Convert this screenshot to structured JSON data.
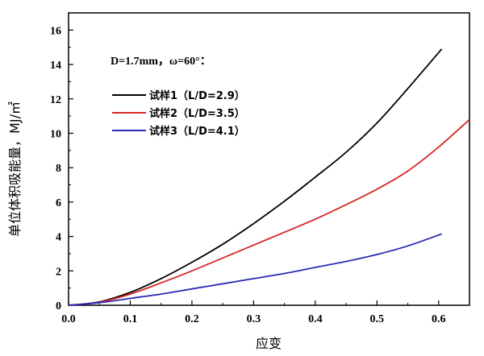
{
  "chart_data": {
    "type": "line",
    "title": "",
    "xlabel": "应变",
    "ylabel": "单位体积吸能量，MJ/㎡",
    "xlim": [
      0.0,
      0.65
    ],
    "ylim": [
      0,
      17
    ],
    "x_ticks": [
      0.0,
      0.1,
      0.2,
      0.3,
      0.4,
      0.5,
      0.6
    ],
    "x_tick_labels": [
      "0.0",
      "0.1",
      "0.2",
      "0.3",
      "0.4",
      "0.5",
      "0.6"
    ],
    "y_ticks": [
      0,
      2,
      4,
      6,
      8,
      10,
      12,
      14,
      16
    ],
    "y_tick_labels": [
      "0",
      "2",
      "4",
      "6",
      "8",
      "10",
      "12",
      "14",
      "16"
    ],
    "grid": false,
    "legend_position": "top-left",
    "annotation": "D=1.7mm，ω=60°：",
    "series": [
      {
        "name": "试样1（L/D=2.9）",
        "color": "#000000",
        "x": [
          0.0,
          0.05,
          0.1,
          0.15,
          0.2,
          0.25,
          0.3,
          0.35,
          0.4,
          0.45,
          0.5,
          0.55,
          0.605
        ],
        "y": [
          0.0,
          0.2,
          0.75,
          1.55,
          2.5,
          3.55,
          4.75,
          6.05,
          7.45,
          8.9,
          10.6,
          12.6,
          14.9
        ]
      },
      {
        "name": "试样2（L/D=3.5）",
        "color": "#d62728",
        "x": [
          0.0,
          0.05,
          0.1,
          0.15,
          0.2,
          0.25,
          0.3,
          0.35,
          0.4,
          0.45,
          0.5,
          0.55,
          0.6,
          0.65
        ],
        "y": [
          0.0,
          0.18,
          0.65,
          1.3,
          2.0,
          2.75,
          3.5,
          4.25,
          5.0,
          5.85,
          6.75,
          7.8,
          9.2,
          10.8
        ]
      },
      {
        "name": "试样3（L/D=4.1）",
        "color": "#2b2bb8",
        "x": [
          0.0,
          0.05,
          0.1,
          0.15,
          0.2,
          0.25,
          0.3,
          0.35,
          0.4,
          0.45,
          0.5,
          0.55,
          0.605
        ],
        "y": [
          0.0,
          0.15,
          0.4,
          0.65,
          0.95,
          1.25,
          1.55,
          1.85,
          2.2,
          2.55,
          2.95,
          3.45,
          4.15
        ]
      }
    ]
  }
}
